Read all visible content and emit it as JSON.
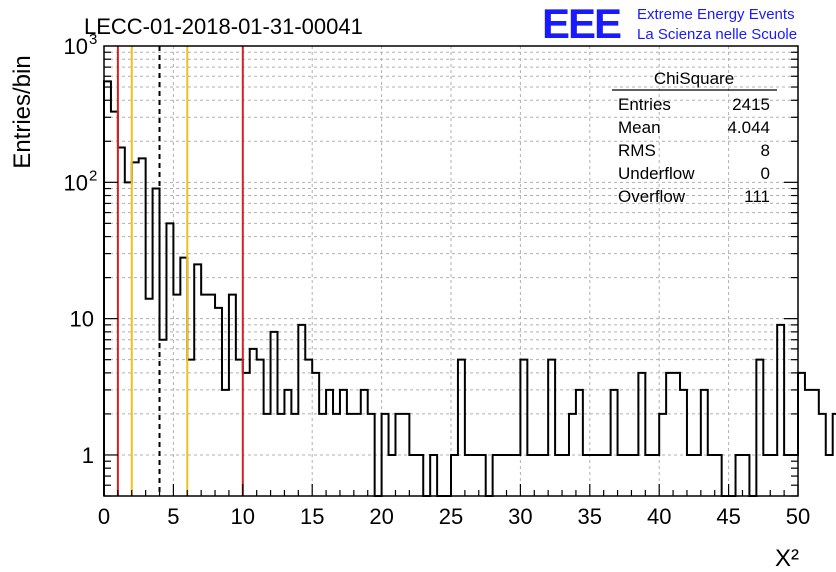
{
  "header": {
    "run_label": "LECC-01-2018-01-31-00041",
    "logo_letters": "EEE",
    "logo_line1": "Extreme Energy Events",
    "logo_line2": "La Scienza nelle Scuole"
  },
  "stats_box": {
    "title": "ChiSquare",
    "rows": [
      {
        "label": "Entries",
        "value": "2415"
      },
      {
        "label": "Mean",
        "value": "4.044"
      },
      {
        "label": "RMS",
        "value": "8"
      },
      {
        "label": "Underflow",
        "value": "0"
      },
      {
        "label": "Overflow",
        "value": "111"
      }
    ]
  },
  "chart_data": {
    "type": "bar",
    "subtype": "histogram",
    "title": "",
    "xlabel": "X²",
    "ylabel": "Entries/bin",
    "xlim": [
      0,
      50
    ],
    "ylim": [
      0.5,
      1000
    ],
    "y_scale": "log",
    "grid": true,
    "bin_width": 0.5,
    "x_tick_labels": [
      "0",
      "5",
      "10",
      "15",
      "20",
      "25",
      "30",
      "35",
      "40",
      "45",
      "50"
    ],
    "y_tick_labels": [
      {
        "mantissa": "1",
        "exp": ""
      },
      {
        "mantissa": "10",
        "exp": ""
      },
      {
        "mantissa": "10",
        "exp": "2"
      },
      {
        "mantissa": "10",
        "exp": "3"
      }
    ],
    "bin_values": [
      550,
      330,
      180,
      100,
      140,
      150,
      14,
      90,
      7,
      50,
      15,
      28,
      5,
      25,
      15,
      15,
      12,
      3,
      15,
      5,
      4,
      6,
      5,
      2,
      8,
      2,
      3,
      2,
      9,
      5,
      4,
      2,
      3,
      2,
      3,
      2,
      2,
      3,
      2,
      0,
      2,
      1,
      2,
      2,
      1,
      1,
      0,
      1,
      0,
      0,
      1,
      5,
      1,
      1,
      1,
      0,
      1,
      1,
      1,
      1,
      5,
      1,
      1,
      1,
      5,
      1,
      1,
      2,
      3,
      1,
      1,
      1,
      1,
      3,
      1,
      1,
      1,
      4,
      1,
      1,
      2,
      4,
      4,
      3,
      1,
      1,
      3,
      1,
      1,
      0,
      0,
      1,
      1,
      0,
      5,
      1,
      1,
      9,
      1,
      1,
      4,
      3,
      3,
      2,
      1,
      2,
      1,
      1,
      2,
      0,
      1,
      2,
      1,
      1,
      6,
      1,
      1,
      1,
      4,
      1,
      1,
      3,
      1,
      1,
      1,
      1,
      0,
      1,
      1,
      4,
      1,
      1,
      9,
      1,
      1,
      2,
      1,
      1,
      9,
      3,
      1,
      1,
      1,
      1,
      1,
      1,
      1,
      1,
      9,
      1,
      1,
      2,
      1,
      1,
      1,
      3,
      1,
      1,
      1,
      1,
      3,
      1,
      1,
      1,
      1,
      1,
      1,
      1,
      2,
      1,
      1,
      1,
      1,
      1,
      1,
      1,
      1,
      1,
      1,
      1,
      1,
      1,
      1,
      1,
      1,
      1,
      1,
      1,
      1,
      1,
      1,
      1,
      1,
      1,
      1
    ],
    "vertical_lines": [
      {
        "x": 1,
        "color": "#d62020",
        "style": "solid"
      },
      {
        "x": 2,
        "color": "#f0c020",
        "style": "solid"
      },
      {
        "x": 4,
        "color": "#000000",
        "style": "dashed"
      },
      {
        "x": 6,
        "color": "#f0c020",
        "style": "solid"
      },
      {
        "x": 10,
        "color": "#d62020",
        "style": "solid"
      }
    ]
  }
}
